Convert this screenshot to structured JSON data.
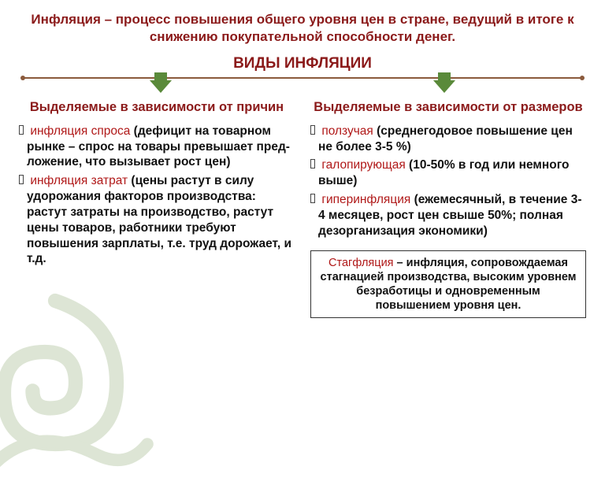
{
  "title": "Инфляция – процесс повышения общего уровня цен в стране, ведущий в итоге к снижению покупательной способности денег.",
  "subtitle": "ВИДЫ ИНФЛЯЦИИ",
  "colors": {
    "heading": "#8b1a1a",
    "line": "#8b5a3c",
    "arrow": "#5a8a3a",
    "term": "#b01818",
    "text": "#111111",
    "box_border": "#333333",
    "background": "#ffffff"
  },
  "left": {
    "head": "Выделяемые в зависимости от причин",
    "items": [
      {
        "term": "инфляция спроса",
        "desc": " (дефицит на товарном рынке – спрос на товары превышает пред-ложение, что вызывает рост цен)"
      },
      {
        "term": "инфляция затрат",
        "desc": " (цены растут в силу удорожания факторов производства: растут затраты на производство, растут цены товаров, работники требуют повышения зарплаты, т.е. труд дорожает, и т.д."
      }
    ]
  },
  "right": {
    "head": "Выделяемые в зависимости от размеров",
    "items": [
      {
        "term": "ползучая",
        "desc": " (среднегодовое повышение цен не более 3-5 %)"
      },
      {
        "term": "галопирующая",
        "desc": " (10-50% в год или немного выше)"
      },
      {
        "term": "гиперинфляция",
        "desc": " (ежемесячный, в течение 3-4 месяцев, рост цен свыше 50%; полная дезорганизация экономики)"
      }
    ]
  },
  "box": {
    "term": "Стагфляция",
    "rest": " – инфляция, сопровождаемая стагнацией производства, высоким уровнем безработицы и одновременным повышением уровня цен."
  }
}
